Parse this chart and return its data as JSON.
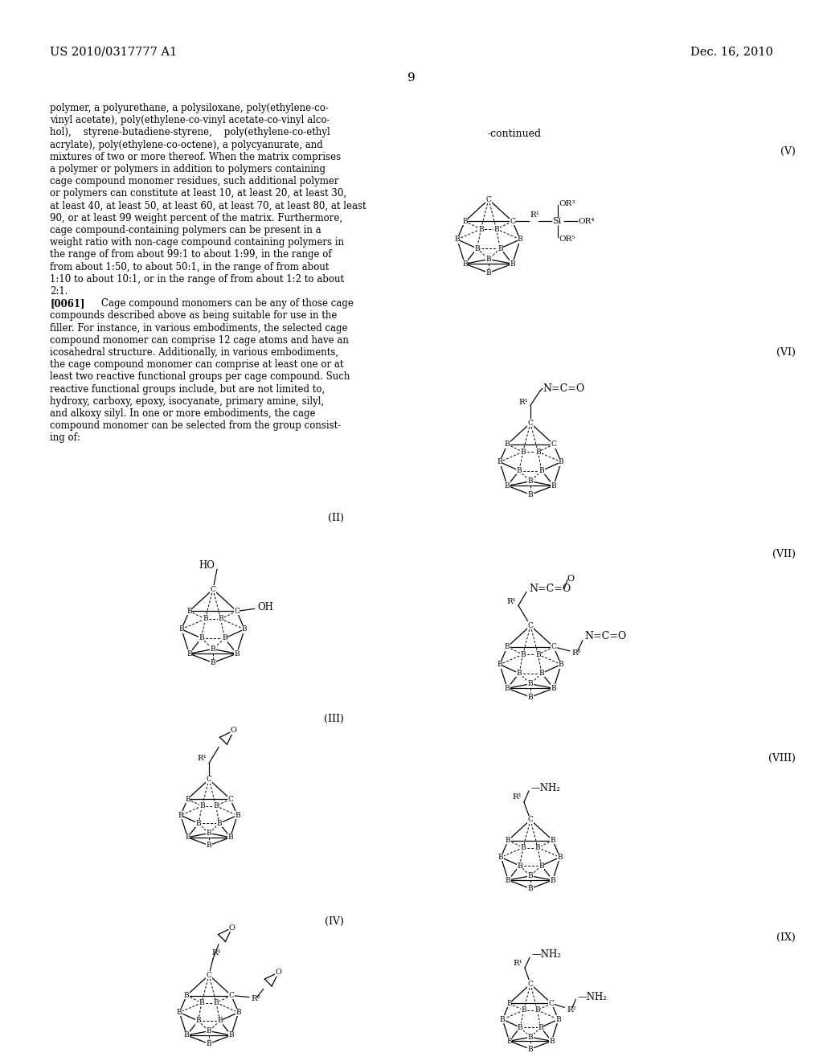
{
  "header_left": "US 2010/0317777 A1",
  "header_right": "Dec. 16, 2010",
  "page_number": "9",
  "continued": "-continued",
  "body_lines": [
    "polymer, a polyurethane, a polysiloxane, poly(ethylene-co-",
    "vinyl acetate), poly(ethylene-co-vinyl acetate-co-vinyl alco-",
    "hol),    styrene-butadiene-styrene,    poly(ethylene-co-ethyl",
    "acrylate), poly(ethylene-co-octene), a polycyanurate, and",
    "mixtures of two or more thereof. When the matrix comprises",
    "a polymer or polymers in addition to polymers containing",
    "cage compound monomer residues, such additional polymer",
    "or polymers can constitute at least 10, at least 20, at least 30,",
    "at least 40, at least 50, at least 60, at least 70, at least 80, at least",
    "90, or at least 99 weight percent of the matrix. Furthermore,",
    "cage compound-containing polymers can be present in a",
    "weight ratio with non-cage compound containing polymers in",
    "the range of from about 99:1 to about 1:99, in the range of",
    "from about 1:50, to about 50:1, in the range of from about",
    "1:10 to about 10:1, or in the range of from about 1:2 to about",
    "2:1.",
    "[0061]   Cage compound monomers can be any of those cage",
    "compounds described above as being suitable for use in the",
    "filler. For instance, in various embodiments, the selected cage",
    "compound monomer can comprise 12 cage atoms and have an",
    "icosahedral structure. Additionally, in various embodiments,",
    "the cage compound monomer can comprise at least one or at",
    "least two reactive functional groups per cage compound. Such",
    "reactive functional groups include, but are not limited to,",
    "hydroxy, carboxy, epoxy, isocyanate, primary amine, silyl,",
    "and alkoxy silyl. In one or more embodiments, the cage",
    "compound monomer can be selected from the group consist-",
    "ing of:"
  ]
}
